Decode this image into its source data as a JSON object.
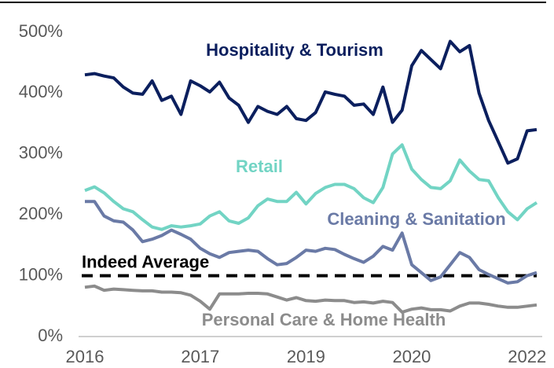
{
  "chart_data": {
    "type": "line",
    "categories": [
      "2016",
      null,
      null,
      null,
      null,
      null,
      null,
      null,
      null,
      null,
      null,
      null,
      "2017",
      null,
      null,
      null,
      null,
      null,
      null,
      null,
      null,
      null,
      null,
      "2019",
      null,
      null,
      null,
      null,
      null,
      null,
      null,
      null,
      null,
      null,
      "2020",
      null,
      null,
      null,
      null,
      null,
      null,
      null,
      null,
      null,
      null,
      null,
      "2022",
      null
    ],
    "series": [
      {
        "name": "Hospitality & Tourism",
        "color": "#0b1f5e",
        "values": [
          430,
          432,
          428,
          425,
          410,
          400,
          398,
          420,
          388,
          395,
          365,
          420,
          412,
          402,
          418,
          392,
          380,
          352,
          378,
          370,
          365,
          378,
          358,
          355,
          368,
          402,
          398,
          395,
          380,
          382,
          365,
          410,
          352,
          372,
          445,
          470,
          455,
          440,
          485,
          468,
          478,
          400,
          355,
          320,
          285,
          292,
          338,
          340
        ]
      },
      {
        "name": "Retail",
        "color": "#72d4c4",
        "values": [
          240,
          246,
          236,
          222,
          210,
          205,
          192,
          180,
          176,
          182,
          180,
          182,
          185,
          198,
          205,
          190,
          186,
          195,
          215,
          226,
          222,
          222,
          237,
          218,
          235,
          245,
          250,
          250,
          243,
          228,
          220,
          245,
          300,
          315,
          275,
          258,
          245,
          243,
          256,
          290,
          272,
          258,
          256,
          228,
          205,
          192,
          210,
          220
        ]
      },
      {
        "name": "Cleaning & Sanitation",
        "color": "#6a7aa6",
        "values": [
          222,
          222,
          198,
          190,
          188,
          175,
          156,
          160,
          166,
          175,
          168,
          160,
          145,
          136,
          130,
          138,
          140,
          142,
          140,
          128,
          118,
          120,
          130,
          142,
          140,
          145,
          143,
          135,
          128,
          122,
          132,
          148,
          142,
          170,
          118,
          105,
          92,
          98,
          118,
          138,
          130,
          110,
          102,
          95,
          88,
          90,
          100,
          105
        ]
      },
      {
        "name": "Personal Care & Home Health",
        "color": "#8c8c8c",
        "values": [
          81,
          83,
          76,
          78,
          77,
          76,
          75,
          75,
          73,
          73,
          72,
          68,
          58,
          45,
          70,
          70,
          70,
          71,
          71,
          70,
          65,
          60,
          64,
          59,
          58,
          60,
          59,
          59,
          56,
          57,
          55,
          58,
          56,
          40,
          45,
          47,
          44,
          44,
          42,
          50,
          55,
          55,
          53,
          50,
          48,
          48,
          50,
          52
        ]
      }
    ],
    "reference_lines": [
      {
        "name": "Indeed Average",
        "value": 100,
        "color": "#000000"
      }
    ],
    "ylim": [
      0,
      500
    ],
    "yticks": [
      {
        "value": 0,
        "label": "0%"
      },
      {
        "value": 100,
        "label": "100%"
      },
      {
        "value": 200,
        "label": "200%"
      },
      {
        "value": 300,
        "label": "300%"
      },
      {
        "value": 400,
        "label": "400%"
      },
      {
        "value": 500,
        "label": "500%"
      }
    ],
    "grid": false
  }
}
